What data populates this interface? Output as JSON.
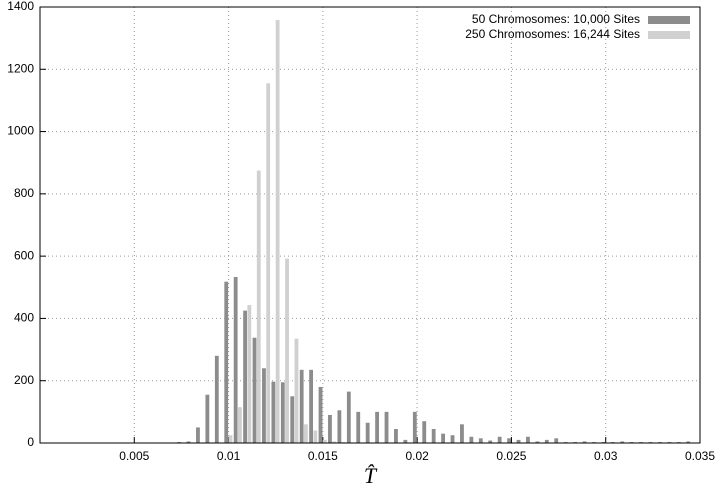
{
  "chart_data": {
    "type": "bar",
    "x_label": "T̂",
    "x": [
      0.007,
      0.0075,
      0.008,
      0.0085,
      0.009,
      0.0095,
      0.01,
      0.0105,
      0.011,
      0.0115,
      0.012,
      0.0125,
      0.013,
      0.0135,
      0.014,
      0.0145,
      0.015,
      0.0155,
      0.016,
      0.0165,
      0.017,
      0.0175,
      0.018,
      0.0185,
      0.019,
      0.0195,
      0.02,
      0.0205,
      0.021,
      0.0215,
      0.022,
      0.0225,
      0.023,
      0.0235,
      0.024,
      0.0245,
      0.025,
      0.0255,
      0.026,
      0.0265,
      0.027,
      0.0275,
      0.028,
      0.0285,
      0.029,
      0.0295,
      0.03,
      0.0305,
      0.031,
      0.0315,
      0.032,
      0.0325,
      0.033,
      0.0335,
      0.034,
      0.0345
    ],
    "series": [
      {
        "name": "50 Chromosomes: 10,000 Sites",
        "color": "#8c8c8c",
        "values": [
          0,
          3,
          5,
          50,
          155,
          280,
          518,
          533,
          425,
          338,
          240,
          197,
          195,
          150,
          235,
          235,
          180,
          90,
          105,
          165,
          100,
          65,
          100,
          100,
          45,
          10,
          100,
          70,
          45,
          30,
          25,
          60,
          20,
          15,
          8,
          20,
          15,
          10,
          20,
          5,
          10,
          15,
          3,
          3,
          5,
          3,
          3,
          3,
          5,
          3,
          3,
          3,
          3,
          3,
          3,
          5
        ]
      },
      {
        "name": "250 Chromosomes: 16,244 Sites",
        "color": "#d0d0d0",
        "values": [
          0,
          0,
          0,
          0,
          0,
          0,
          25,
          115,
          443,
          875,
          1155,
          1358,
          592,
          335,
          60,
          40,
          10,
          5,
          3,
          0,
          0,
          0,
          0,
          0,
          0,
          0,
          0,
          0,
          0,
          0,
          0,
          0,
          0,
          0,
          0,
          0,
          0,
          0,
          0,
          0,
          0,
          0,
          0,
          0,
          0,
          0,
          0,
          0,
          0,
          0,
          0,
          0,
          0,
          0,
          0,
          0
        ]
      }
    ],
    "xlim": [
      0,
      0.035
    ],
    "xticks": [
      0.005,
      0.01,
      0.015,
      0.02,
      0.025,
      0.03,
      0.035
    ],
    "ylim": [
      0,
      1400
    ],
    "yticks": [
      0,
      200,
      400,
      600,
      800,
      1000,
      1200,
      1400
    ],
    "grid": true,
    "legend": "top-right"
  }
}
